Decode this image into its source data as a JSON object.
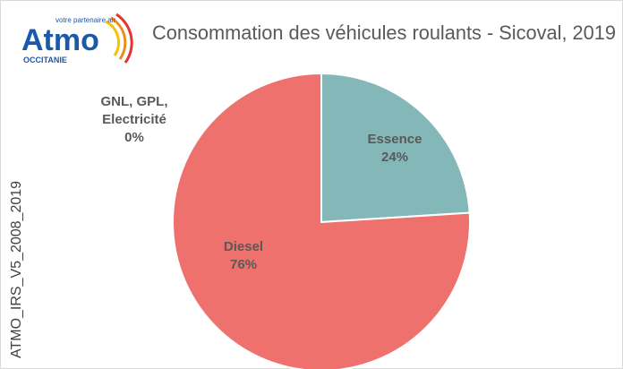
{
  "logo": {
    "name": "Atmo",
    "tagline": "votre partenaire air",
    "region": "OCCITANIE"
  },
  "side_label": "ATMO_IRS_V5_2008_2019",
  "chart_data": {
    "type": "pie",
    "title": "Consommation des véhicules roulants - Sicoval, 2019",
    "categories": [
      "Essence",
      "Diesel",
      "GNL, GPL, Electricité"
    ],
    "values": [
      24,
      76,
      0
    ],
    "value_labels": [
      "24%",
      "76%",
      "0%"
    ],
    "colors": [
      "#84b8b8",
      "#ef716d",
      "#9e9e9e"
    ]
  }
}
